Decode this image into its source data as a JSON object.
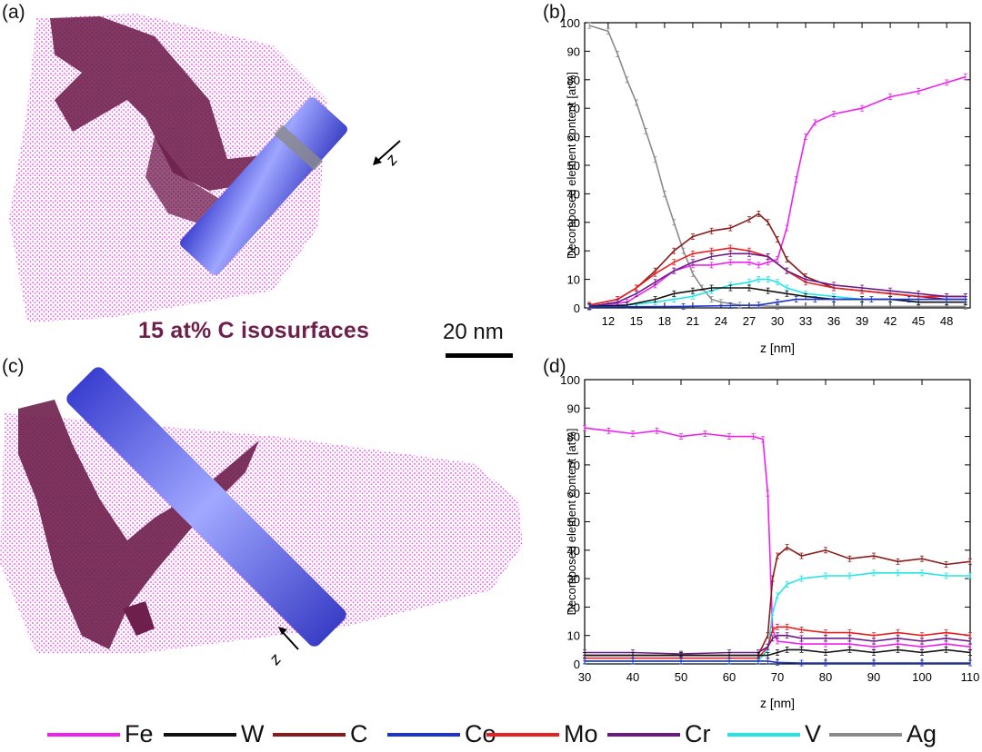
{
  "panels": {
    "a": "(a)",
    "b": "(b)",
    "c": "(c)",
    "d": "(d)"
  },
  "isosurface_label": "15 at% C isosurfaces",
  "scale_bar_label": "20 nm",
  "direction_label": "z",
  "colors": {
    "Fe": "#ee22ee",
    "W": "#111111",
    "C": "#8b1a1a",
    "Co": "#1c33cc",
    "Mo": "#e82020",
    "Cr": "#6a1a86",
    "V": "#22e6e6",
    "Ag": "#8a8a8a",
    "iso": "#6e1f4b",
    "cylinder": "#5d63e6"
  },
  "legend": [
    {
      "name": "Fe",
      "color": "#ee22ee"
    },
    {
      "name": "W",
      "color": "#111111"
    },
    {
      "name": "C",
      "color": "#8b1a1a"
    },
    {
      "name": "Co",
      "color": "#1c33cc"
    },
    {
      "name": "Mo",
      "color": "#e82020"
    },
    {
      "name": "Cr",
      "color": "#6a1a86"
    },
    {
      "name": "V",
      "color": "#22e6e6"
    },
    {
      "name": "Ag",
      "color": "#8a8a8a"
    }
  ],
  "chart_data": [
    {
      "id": "b",
      "type": "line",
      "xlabel": "z [nm]",
      "ylabel": "Decomposed element content [at%]",
      "xlim": [
        9.5,
        50.5
      ],
      "ylim": [
        0,
        100
      ],
      "xticks": [
        12,
        15,
        18,
        21,
        24,
        27,
        30,
        33,
        36,
        39,
        42,
        45,
        48
      ],
      "yticks": [
        0,
        10,
        20,
        30,
        40,
        50,
        60,
        70,
        80,
        90,
        100
      ],
      "grid": false,
      "series": [
        {
          "name": "Ag",
          "x": [
            10,
            12,
            13,
            14,
            15,
            16,
            17,
            18,
            19,
            20,
            21,
            22,
            23,
            24,
            26,
            30,
            50
          ],
          "y": [
            99,
            97,
            89,
            80,
            72,
            62,
            52,
            40,
            30,
            20,
            12,
            7,
            3,
            2,
            1,
            0.5,
            0.5
          ]
        },
        {
          "name": "Fe",
          "x": [
            10,
            14,
            17,
            19,
            21,
            23,
            25,
            27,
            28,
            29,
            30,
            31,
            32,
            33,
            34,
            36,
            39,
            42,
            45,
            48,
            50
          ],
          "y": [
            0.5,
            2,
            8,
            13,
            15,
            15,
            16,
            16,
            15,
            16,
            17,
            28,
            45,
            60,
            65,
            68,
            70,
            74,
            76,
            79,
            81
          ]
        },
        {
          "name": "C",
          "x": [
            10,
            13,
            15,
            17,
            19,
            21,
            23,
            25,
            27,
            28,
            29,
            30,
            31,
            33,
            36,
            39,
            42,
            45,
            48,
            50
          ],
          "y": [
            1,
            3,
            7,
            13,
            20,
            25,
            27,
            28,
            31,
            33,
            30,
            24,
            17,
            11,
            7,
            6,
            5,
            4,
            3,
            3
          ]
        },
        {
          "name": "Mo",
          "x": [
            10,
            13,
            15,
            17,
            19,
            21,
            23,
            25,
            27,
            29,
            31,
            33,
            36,
            39,
            42,
            45,
            48,
            50
          ],
          "y": [
            1,
            3,
            7,
            12,
            16,
            19,
            20,
            21,
            20,
            18,
            13,
            9,
            7,
            6,
            5,
            4,
            4,
            4
          ]
        },
        {
          "name": "Cr",
          "x": [
            10,
            13,
            15,
            17,
            19,
            21,
            23,
            25,
            27,
            29,
            31,
            33,
            36,
            39,
            42,
            45,
            48,
            50
          ],
          "y": [
            0.5,
            2,
            5,
            9,
            13,
            16,
            18,
            19,
            19,
            18,
            13,
            10,
            8,
            7,
            6,
            5,
            4,
            4
          ]
        },
        {
          "name": "V",
          "x": [
            10,
            14,
            17,
            19,
            21,
            23,
            25,
            27,
            28,
            29,
            30,
            31,
            33,
            36,
            39,
            42,
            45,
            48,
            50
          ],
          "y": [
            0.5,
            1,
            2,
            3,
            4,
            6,
            8,
            9,
            10,
            10,
            9,
            7,
            5,
            4,
            3,
            3,
            2,
            2,
            2
          ]
        },
        {
          "name": "W",
          "x": [
            10,
            14,
            17,
            19,
            21,
            23,
            25,
            27,
            29,
            31,
            33,
            36,
            39,
            42,
            45,
            48,
            50
          ],
          "y": [
            0.5,
            1,
            3,
            5,
            6,
            7,
            7,
            7,
            6,
            5,
            4,
            3,
            3,
            3,
            2,
            2,
            2
          ]
        },
        {
          "name": "Co",
          "x": [
            10,
            20,
            25,
            28,
            30,
            32,
            34,
            36,
            40,
            44,
            48,
            50
          ],
          "y": [
            0.3,
            0.5,
            0.8,
            1,
            2,
            3,
            3,
            3,
            3,
            3,
            3,
            3
          ]
        }
      ]
    },
    {
      "id": "d",
      "type": "line",
      "xlabel": "z [nm]",
      "ylabel": "Decomposed element content [at%]",
      "xlim": [
        30,
        110
      ],
      "ylim": [
        0,
        100
      ],
      "xticks": [
        30,
        40,
        50,
        60,
        70,
        80,
        90,
        100,
        110
      ],
      "yticks": [
        0,
        10,
        20,
        30,
        40,
        50,
        60,
        70,
        80,
        90,
        100
      ],
      "grid": false,
      "series": [
        {
          "name": "Fe",
          "x": [
            30,
            35,
            40,
            45,
            50,
            55,
            60,
            65,
            67,
            68,
            69,
            70,
            75,
            80,
            85,
            90,
            95,
            100,
            105,
            110
          ],
          "y": [
            83,
            82,
            81,
            82,
            80,
            81,
            80,
            80,
            79,
            60,
            12,
            8,
            7,
            7,
            7,
            6,
            7,
            6,
            7,
            6
          ]
        },
        {
          "name": "C",
          "x": [
            30,
            40,
            50,
            60,
            66,
            68,
            69,
            70,
            72,
            75,
            80,
            85,
            90,
            95,
            100,
            105,
            110
          ],
          "y": [
            3,
            3,
            3,
            3,
            3,
            10,
            30,
            38,
            41,
            38,
            40,
            37,
            38,
            36,
            37,
            35,
            36
          ]
        },
        {
          "name": "V",
          "x": [
            30,
            40,
            50,
            60,
            66,
            68,
            69,
            70,
            72,
            75,
            80,
            85,
            90,
            95,
            100,
            105,
            110
          ],
          "y": [
            1,
            1,
            1,
            1,
            1,
            5,
            18,
            24,
            28,
            30,
            31,
            31,
            32,
            32,
            32,
            31,
            31
          ]
        },
        {
          "name": "Mo",
          "x": [
            30,
            40,
            50,
            60,
            66,
            68,
            69,
            70,
            72,
            75,
            80,
            85,
            90,
            95,
            100,
            105,
            110
          ],
          "y": [
            2,
            2,
            2,
            2,
            2,
            6,
            12,
            13,
            13,
            12,
            11,
            11,
            10,
            11,
            10,
            11,
            10
          ]
        },
        {
          "name": "Cr",
          "x": [
            30,
            40,
            50,
            60,
            66,
            68,
            69,
            70,
            72,
            75,
            80,
            85,
            90,
            95,
            100,
            105,
            110
          ],
          "y": [
            4,
            4,
            3.5,
            4,
            4,
            6,
            9,
            10,
            10,
            9,
            9,
            9,
            8,
            9,
            8,
            9,
            8
          ]
        },
        {
          "name": "W",
          "x": [
            30,
            40,
            50,
            60,
            66,
            68,
            70,
            72,
            75,
            80,
            85,
            90,
            95,
            100,
            105,
            110
          ],
          "y": [
            3,
            3,
            3,
            3,
            3,
            3,
            4,
            5,
            5,
            4,
            5,
            4,
            5,
            4,
            5,
            4
          ]
        },
        {
          "name": "Co",
          "x": [
            30,
            40,
            50,
            60,
            66,
            68,
            70,
            75,
            80,
            90,
            100,
            110
          ],
          "y": [
            1,
            1,
            1,
            1,
            1,
            1,
            0.5,
            0.3,
            0.3,
            0.3,
            0.3,
            0.3
          ]
        }
      ]
    }
  ]
}
